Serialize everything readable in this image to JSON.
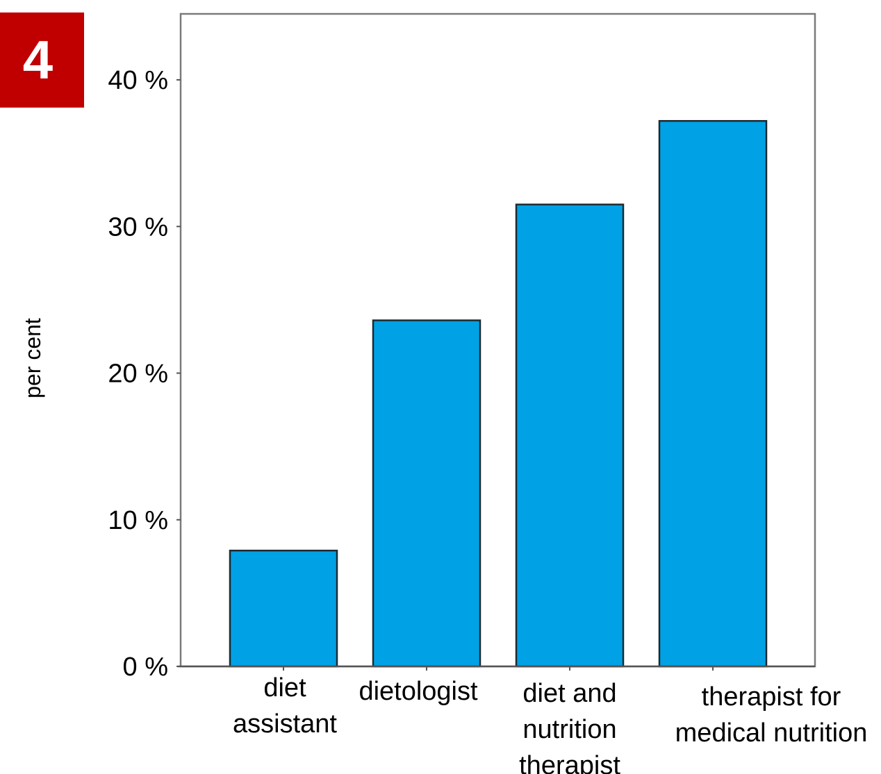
{
  "badge": {
    "number": "4",
    "color": "#c00000"
  },
  "chart_data": {
    "type": "bar",
    "categories": [
      [
        "diet",
        "assistant"
      ],
      [
        "dietologist"
      ],
      [
        "diet and",
        "nutrition",
        "therapist"
      ],
      [
        "therapist for",
        "medical nutrition"
      ]
    ],
    "values": [
      7.9,
      23.6,
      31.5,
      37.2
    ],
    "ylabel": "per cent",
    "xlabel": "",
    "ylim": [
      0,
      44.5
    ],
    "yticks": [
      0,
      10,
      20,
      30,
      40
    ],
    "ytick_labels": [
      "0 %",
      "10 %",
      "20 %",
      "30 %",
      "40 %"
    ],
    "bar_color": "#00a2e5",
    "bar_edge_color": "#1a2a30",
    "grid": false,
    "legend": "none"
  }
}
